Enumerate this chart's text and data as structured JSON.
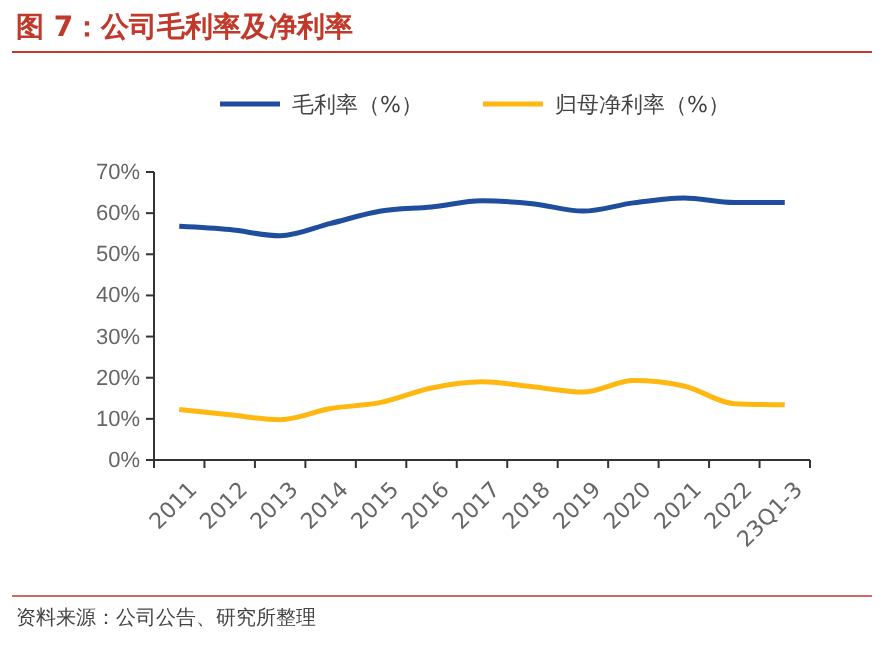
{
  "chart_data": {
    "type": "line",
    "title": "图 7：公司毛利率及净利率",
    "categories": [
      "2011",
      "2012",
      "2013",
      "2014",
      "2015",
      "2016",
      "2017",
      "2018",
      "2019",
      "2020",
      "2021",
      "2022",
      "23Q1-3"
    ],
    "series": [
      {
        "name": "毛利率（%）",
        "color": "#1f4e9e",
        "values": [
          56.8,
          56.0,
          54.5,
          57.5,
          60.5,
          61.5,
          63.0,
          62.3,
          60.5,
          62.5,
          63.7,
          62.6,
          62.6
        ]
      },
      {
        "name": "归母净利率（%）",
        "color": "#ffb812",
        "values": [
          12.3,
          11.0,
          9.8,
          12.5,
          14.0,
          17.5,
          19.0,
          17.8,
          16.5,
          19.3,
          18.0,
          13.7,
          13.4
        ]
      }
    ],
    "ylim": [
      0,
      70
    ],
    "yticks": [
      {
        "value": 0,
        "label": "0%"
      },
      {
        "value": 10,
        "label": "10%"
      },
      {
        "value": 20,
        "label": "20%"
      },
      {
        "value": 30,
        "label": "30%"
      },
      {
        "value": 40,
        "label": "40%"
      },
      {
        "value": 50,
        "label": "50%"
      },
      {
        "value": 60,
        "label": "60%"
      },
      {
        "value": 70,
        "label": "70%"
      }
    ],
    "legend": "top",
    "grid": false,
    "marker": "none",
    "line_style": "solid",
    "annotations": [
      "资料来源：公司公告、研究所整理"
    ]
  }
}
